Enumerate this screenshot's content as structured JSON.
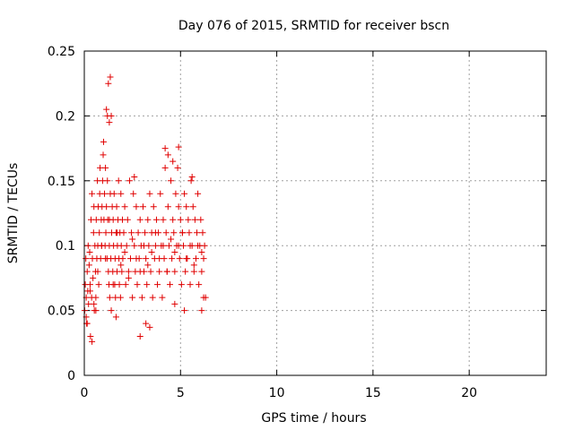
{
  "colors": {
    "marker": "#e00000",
    "grid": "#a0a0a0",
    "axis": "#000000"
  },
  "chart_data": {
    "type": "scatter",
    "title": "Day 076 of 2015, SRMTID for receiver bscn",
    "xlabel": "GPS time / hours",
    "ylabel": "SRMTID / TECUs",
    "xlim": [
      0,
      24
    ],
    "ylim": [
      0,
      0.25
    ],
    "xticks": [
      0,
      5,
      10,
      15,
      20
    ],
    "xtick_labels": [
      "0",
      "5",
      "10",
      "15",
      "20"
    ],
    "yticks": [
      0,
      0.05,
      0.1,
      0.15,
      0.2,
      0.25
    ],
    "ytick_labels": [
      "0",
      "0.05",
      "0.1",
      "0.15",
      "0.2",
      "0.25"
    ],
    "grid": true,
    "marker": "+",
    "series": [
      {
        "name": "SRMTID",
        "x": [
          0.02,
          0.05,
          0.08,
          0.1,
          0.12,
          0.15,
          0.18,
          0.2,
          0.22,
          0.25,
          0.28,
          0.3,
          0.32,
          0.35,
          0.38,
          0.4,
          0.42,
          0.45,
          0.48,
          0.5,
          0.52,
          0.55,
          0.58,
          0.6,
          0.62,
          0.65,
          0.68,
          0.7,
          0.72,
          0.75,
          0.78,
          0.8,
          0.82,
          0.85,
          0.88,
          0.9,
          0.92,
          0.95,
          0.98,
          1.0,
          1.02,
          1.05,
          1.08,
          1.1,
          1.12,
          1.15,
          1.18,
          1.2,
          1.22,
          1.25,
          1.28,
          1.3,
          1.32,
          1.35,
          1.38,
          1.4,
          1.42,
          1.45,
          1.48,
          1.5,
          1.52,
          1.55,
          1.58,
          1.6,
          1.62,
          1.65,
          1.68,
          1.7,
          1.72,
          1.75,
          1.78,
          1.8,
          1.82,
          1.85,
          1.88,
          1.9,
          1.92,
          1.95,
          1.98,
          2.0,
          2.05,
          2.1,
          2.15,
          2.2,
          2.25,
          2.3,
          2.35,
          2.4,
          2.45,
          2.5,
          2.55,
          2.6,
          2.65,
          2.7,
          2.75,
          2.8,
          2.85,
          2.9,
          2.95,
          3.0,
          3.05,
          3.1,
          3.15,
          3.2,
          3.25,
          3.3,
          3.35,
          3.4,
          3.45,
          3.5,
          3.55,
          3.6,
          3.65,
          3.7,
          3.75,
          3.8,
          3.85,
          3.9,
          3.95,
          4.0,
          4.05,
          4.1,
          4.15,
          4.2,
          4.25,
          4.3,
          4.35,
          4.4,
          4.45,
          4.5,
          4.55,
          4.6,
          4.65,
          4.7,
          4.75,
          4.8,
          4.85,
          4.9,
          4.95,
          5.0,
          5.05,
          5.1,
          5.15,
          5.2,
          5.25,
          5.3,
          5.35,
          5.4,
          5.45,
          5.5,
          5.55,
          5.6,
          5.65,
          5.7,
          5.75,
          5.8,
          5.85,
          5.9,
          5.95,
          6.0,
          6.05,
          6.1,
          6.15,
          6.2,
          6.25,
          6.3,
          0.1,
          0.3,
          0.5,
          0.7,
          0.9,
          1.1,
          1.3,
          1.5,
          1.7,
          1.9,
          2.1,
          2.3,
          2.5,
          2.7,
          2.9,
          3.1,
          3.3,
          3.5,
          3.7,
          3.9,
          4.1,
          4.3,
          4.5,
          4.7,
          4.9,
          5.1,
          5.3,
          5.5,
          5.7,
          5.9,
          6.1,
          1.25,
          1.35,
          1.2,
          1.3,
          1.4,
          1.15,
          4.2,
          4.35,
          4.6,
          4.9,
          5.6,
          2.6,
          0.4,
          1.65,
          0.15,
          3.2,
          3.4,
          0.6,
          4.7,
          5.2,
          6.1,
          6.2,
          2.9
        ],
        "y": [
          0.05,
          0.07,
          0.09,
          0.06,
          0.04,
          0.08,
          0.065,
          0.1,
          0.055,
          0.085,
          0.095,
          0.07,
          0.03,
          0.12,
          0.06,
          0.14,
          0.09,
          0.075,
          0.11,
          0.13,
          0.05,
          0.1,
          0.08,
          0.06,
          0.12,
          0.09,
          0.15,
          0.1,
          0.13,
          0.07,
          0.11,
          0.14,
          0.16,
          0.09,
          0.12,
          0.1,
          0.13,
          0.15,
          0.17,
          0.18,
          0.12,
          0.14,
          0.1,
          0.16,
          0.11,
          0.13,
          0.09,
          0.15,
          0.12,
          0.08,
          0.07,
          0.1,
          0.06,
          0.14,
          0.09,
          0.05,
          0.11,
          0.13,
          0.08,
          0.12,
          0.1,
          0.14,
          0.07,
          0.09,
          0.06,
          0.11,
          0.13,
          0.08,
          0.1,
          0.12,
          0.15,
          0.09,
          0.07,
          0.11,
          0.06,
          0.14,
          0.1,
          0.08,
          0.12,
          0.09,
          0.11,
          0.13,
          0.07,
          0.1,
          0.12,
          0.08,
          0.15,
          0.09,
          0.11,
          0.06,
          0.14,
          0.1,
          0.08,
          0.13,
          0.07,
          0.11,
          0.09,
          0.12,
          0.1,
          0.06,
          0.13,
          0.08,
          0.11,
          0.09,
          0.07,
          0.12,
          0.1,
          0.14,
          0.08,
          0.11,
          0.06,
          0.13,
          0.09,
          0.1,
          0.12,
          0.07,
          0.11,
          0.08,
          0.14,
          0.1,
          0.06,
          0.12,
          0.09,
          0.16,
          0.11,
          0.08,
          0.13,
          0.1,
          0.07,
          0.15,
          0.09,
          0.12,
          0.11,
          0.08,
          0.14,
          0.1,
          0.16,
          0.13,
          0.09,
          0.12,
          0.07,
          0.11,
          0.1,
          0.14,
          0.08,
          0.13,
          0.09,
          0.12,
          0.11,
          0.07,
          0.15,
          0.1,
          0.13,
          0.08,
          0.12,
          0.09,
          0.11,
          0.14,
          0.07,
          0.1,
          0.12,
          0.08,
          0.11,
          0.09,
          0.1,
          0.06,
          0.045,
          0.065,
          0.055,
          0.08,
          0.1,
          0.09,
          0.12,
          0.07,
          0.11,
          0.085,
          0.095,
          0.075,
          0.105,
          0.09,
          0.08,
          0.1,
          0.085,
          0.095,
          0.11,
          0.09,
          0.1,
          0.08,
          0.105,
          0.095,
          0.1,
          0.11,
          0.09,
          0.1,
          0.085,
          0.1,
          0.095,
          0.225,
          0.23,
          0.2,
          0.195,
          0.2,
          0.205,
          0.175,
          0.17,
          0.165,
          0.176,
          0.153,
          0.153,
          0.026,
          0.045,
          0.04,
          0.04,
          0.037,
          0.05,
          0.055,
          0.05,
          0.05,
          0.06,
          0.03
        ]
      }
    ]
  }
}
